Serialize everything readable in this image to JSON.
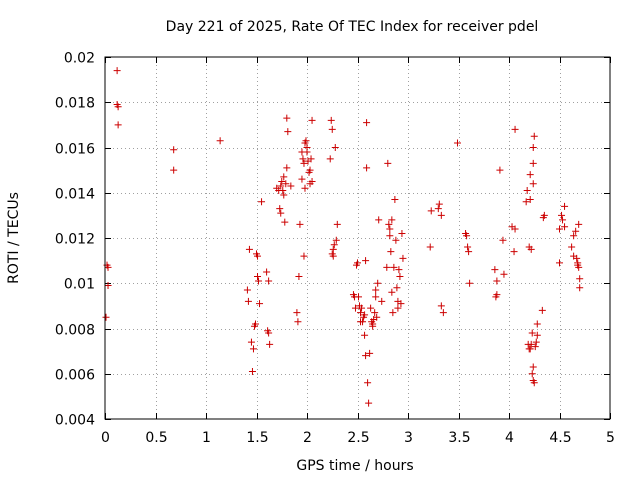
{
  "chart_data": {
    "type": "scatter",
    "title": "Day 221 of 2025, Rate Of TEC Index for receiver pdel",
    "xlabel": "GPS time / hours",
    "ylabel": "ROTI / TECUs",
    "xlim": [
      0,
      5
    ],
    "ylim": [
      0.004,
      0.02
    ],
    "grid": true,
    "marker": "+",
    "color": "#cc0000",
    "x_ticks": [
      0,
      0.5,
      1,
      1.5,
      2,
      2.5,
      3,
      3.5,
      4,
      4.5,
      5
    ],
    "x_tick_labels": [
      "0",
      "0.5",
      "1",
      "1.5",
      "2",
      "2.5",
      "3",
      "3.5",
      "4",
      "4.5",
      "5"
    ],
    "y_ticks": [
      0.004,
      0.006,
      0.008,
      0.01,
      0.012,
      0.014,
      0.016,
      0.018,
      0.02
    ],
    "y_tick_labels": [
      "0.004",
      "0.006",
      "0.008",
      "0.01",
      "0.012",
      "0.014",
      "0.016",
      "0.018",
      "0.02"
    ],
    "points": [
      [
        0.01,
        0.0085
      ],
      [
        0.02,
        0.0108
      ],
      [
        0.03,
        0.0107
      ],
      [
        0.03,
        0.0099
      ],
      [
        0.12,
        0.0194
      ],
      [
        0.12,
        0.0179
      ],
      [
        0.13,
        0.0178
      ],
      [
        0.13,
        0.017
      ],
      [
        0.68,
        0.0159
      ],
      [
        0.68,
        0.015
      ],
      [
        1.14,
        0.0163
      ],
      [
        1.41,
        0.0097
      ],
      [
        1.42,
        0.0092
      ],
      [
        1.43,
        0.0115
      ],
      [
        1.45,
        0.0074
      ],
      [
        1.46,
        0.0061
      ],
      [
        1.47,
        0.0071
      ],
      [
        1.48,
        0.0081
      ],
      [
        1.49,
        0.0082
      ],
      [
        1.5,
        0.0113
      ],
      [
        1.51,
        0.0112
      ],
      [
        1.51,
        0.0103
      ],
      [
        1.52,
        0.0101
      ],
      [
        1.53,
        0.0091
      ],
      [
        1.55,
        0.0136
      ],
      [
        1.6,
        0.0105
      ],
      [
        1.61,
        0.0079
      ],
      [
        1.62,
        0.0078
      ],
      [
        1.63,
        0.0073
      ],
      [
        1.62,
        0.0101
      ],
      [
        1.7,
        0.0142
      ],
      [
        1.72,
        0.0141
      ],
      [
        1.73,
        0.0133
      ],
      [
        1.74,
        0.0131
      ],
      [
        1.74,
        0.0143
      ],
      [
        1.75,
        0.0145
      ],
      [
        1.76,
        0.0141
      ],
      [
        1.77,
        0.0139
      ],
      [
        1.77,
        0.0147
      ],
      [
        1.78,
        0.0127
      ],
      [
        1.79,
        0.0144
      ],
      [
        1.8,
        0.0151
      ],
      [
        1.8,
        0.0173
      ],
      [
        1.81,
        0.0167
      ],
      [
        1.84,
        0.0143
      ],
      [
        1.9,
        0.0087
      ],
      [
        1.91,
        0.0083
      ],
      [
        1.92,
        0.0103
      ],
      [
        1.93,
        0.0126
      ],
      [
        1.95,
        0.0158
      ],
      [
        1.95,
        0.0146
      ],
      [
        1.96,
        0.0155
      ],
      [
        1.97,
        0.0153
      ],
      [
        1.97,
        0.0112
      ],
      [
        1.98,
        0.0142
      ],
      [
        1.98,
        0.0162
      ],
      [
        1.99,
        0.0163
      ],
      [
        2.0,
        0.016
      ],
      [
        2.0,
        0.0158
      ],
      [
        2.01,
        0.0154
      ],
      [
        2.02,
        0.0149
      ],
      [
        2.03,
        0.0144
      ],
      [
        2.03,
        0.015
      ],
      [
        2.04,
        0.0155
      ],
      [
        2.05,
        0.0145
      ],
      [
        2.05,
        0.0172
      ],
      [
        2.23,
        0.0155
      ],
      [
        2.24,
        0.0172
      ],
      [
        2.25,
        0.0168
      ],
      [
        2.25,
        0.0113
      ],
      [
        2.26,
        0.0115
      ],
      [
        2.26,
        0.0112
      ],
      [
        2.27,
        0.0117
      ],
      [
        2.28,
        0.016
      ],
      [
        2.29,
        0.0119
      ],
      [
        2.3,
        0.0126
      ],
      [
        2.46,
        0.0095
      ],
      [
        2.47,
        0.0094
      ],
      [
        2.48,
        0.0089
      ],
      [
        2.49,
        0.0108
      ],
      [
        2.5,
        0.0109
      ],
      [
        2.51,
        0.0094
      ],
      [
        2.52,
        0.009
      ],
      [
        2.53,
        0.0087
      ],
      [
        2.53,
        0.0083
      ],
      [
        2.54,
        0.0089
      ],
      [
        2.55,
        0.0083
      ],
      [
        2.56,
        0.0085
      ],
      [
        2.57,
        0.0086
      ],
      [
        2.57,
        0.0077
      ],
      [
        2.58,
        0.0068
      ],
      [
        2.58,
        0.011
      ],
      [
        2.59,
        0.0151
      ],
      [
        2.59,
        0.0171
      ],
      [
        2.6,
        0.0056
      ],
      [
        2.61,
        0.0047
      ],
      [
        2.62,
        0.0069
      ],
      [
        2.63,
        0.0089
      ],
      [
        2.64,
        0.0083
      ],
      [
        2.65,
        0.0082
      ],
      [
        2.65,
        0.0081
      ],
      [
        2.66,
        0.0084
      ],
      [
        2.67,
        0.0087
      ],
      [
        2.68,
        0.0094
      ],
      [
        2.68,
        0.0097
      ],
      [
        2.69,
        0.0085
      ],
      [
        2.7,
        0.01
      ],
      [
        2.71,
        0.0128
      ],
      [
        2.74,
        0.0092
      ],
      [
        2.79,
        0.0107
      ],
      [
        2.8,
        0.0153
      ],
      [
        2.81,
        0.0126
      ],
      [
        2.82,
        0.0121
      ],
      [
        2.82,
        0.0124
      ],
      [
        2.83,
        0.0114
      ],
      [
        2.84,
        0.0128
      ],
      [
        2.84,
        0.0096
      ],
      [
        2.85,
        0.0087
      ],
      [
        2.86,
        0.0107
      ],
      [
        2.87,
        0.0137
      ],
      [
        2.88,
        0.0119
      ],
      [
        2.89,
        0.0098
      ],
      [
        2.9,
        0.0092
      ],
      [
        2.9,
        0.0089
      ],
      [
        2.91,
        0.0106
      ],
      [
        2.92,
        0.0103
      ],
      [
        2.93,
        0.0091
      ],
      [
        2.94,
        0.0122
      ],
      [
        2.95,
        0.0111
      ],
      [
        3.22,
        0.0116
      ],
      [
        3.23,
        0.0132
      ],
      [
        3.3,
        0.0133
      ],
      [
        3.31,
        0.0135
      ],
      [
        3.33,
        0.013
      ],
      [
        3.33,
        0.009
      ],
      [
        3.35,
        0.0087
      ],
      [
        3.49,
        0.0162
      ],
      [
        3.57,
        0.0122
      ],
      [
        3.58,
        0.0121
      ],
      [
        3.59,
        0.0116
      ],
      [
        3.6,
        0.0114
      ],
      [
        3.61,
        0.01
      ],
      [
        3.86,
        0.0106
      ],
      [
        3.87,
        0.0094
      ],
      [
        3.88,
        0.0095
      ],
      [
        3.88,
        0.0101
      ],
      [
        3.91,
        0.015
      ],
      [
        3.94,
        0.0119
      ],
      [
        3.95,
        0.0104
      ],
      [
        4.03,
        0.0125
      ],
      [
        4.05,
        0.0114
      ],
      [
        4.06,
        0.0124
      ],
      [
        4.06,
        0.0168
      ],
      [
        4.17,
        0.0136
      ],
      [
        4.18,
        0.0141
      ],
      [
        4.19,
        0.0073
      ],
      [
        4.2,
        0.0071
      ],
      [
        4.2,
        0.0116
      ],
      [
        4.21,
        0.0071
      ],
      [
        4.21,
        0.0148
      ],
      [
        4.21,
        0.0137
      ],
      [
        4.22,
        0.0073
      ],
      [
        4.22,
        0.0115
      ],
      [
        4.23,
        0.0078
      ],
      [
        4.23,
        0.006
      ],
      [
        4.24,
        0.0057
      ],
      [
        4.24,
        0.0063
      ],
      [
        4.24,
        0.0144
      ],
      [
        4.24,
        0.0153
      ],
      [
        4.24,
        0.016
      ],
      [
        4.25,
        0.0056
      ],
      [
        4.25,
        0.0165
      ],
      [
        4.26,
        0.0072
      ],
      [
        4.27,
        0.0074
      ],
      [
        4.28,
        0.0082
      ],
      [
        4.28,
        0.0077
      ],
      [
        4.33,
        0.0088
      ],
      [
        4.34,
        0.0129
      ],
      [
        4.35,
        0.013
      ],
      [
        4.5,
        0.0124
      ],
      [
        4.5,
        0.0109
      ],
      [
        4.52,
        0.013
      ],
      [
        4.53,
        0.0128
      ],
      [
        4.55,
        0.0134
      ],
      [
        4.55,
        0.0125
      ],
      [
        4.62,
        0.0116
      ],
      [
        4.64,
        0.0112
      ],
      [
        4.64,
        0.0121
      ],
      [
        4.66,
        0.0123
      ],
      [
        4.67,
        0.0111
      ],
      [
        4.68,
        0.0109
      ],
      [
        4.68,
        0.0108
      ],
      [
        4.69,
        0.0107
      ],
      [
        4.69,
        0.0126
      ],
      [
        4.7,
        0.0102
      ],
      [
        4.7,
        0.0098
      ]
    ]
  }
}
